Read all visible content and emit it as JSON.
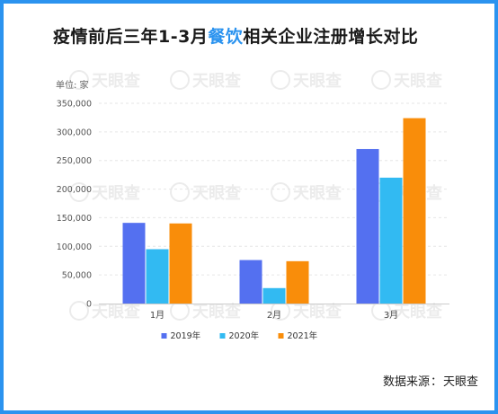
{
  "title": {
    "prefix": "疫情前后三年1-3月",
    "highlight": "餐饮",
    "suffix": "相关企业注册增长对比"
  },
  "unit_label": "单位: 家",
  "source": {
    "label": "数据来源",
    "separator": "：",
    "name": "天眼查"
  },
  "watermark": "天眼查",
  "colors": {
    "frame": "#2b93ef",
    "highlight": "#2b93ef"
  },
  "chart_data": {
    "type": "bar",
    "categories": [
      "1月",
      "2月",
      "3月"
    ],
    "series": [
      {
        "name": "2019年",
        "color": "#5470f0",
        "values": [
          141000,
          76000,
          270000
        ]
      },
      {
        "name": "2020年",
        "color": "#32baf2",
        "values": [
          95000,
          27000,
          220000
        ]
      },
      {
        "name": "2021年",
        "color": "#f98d0a",
        "values": [
          140000,
          74000,
          324000
        ]
      }
    ],
    "ylim": [
      0,
      350000
    ],
    "yticks": [
      0,
      50000,
      100000,
      150000,
      200000,
      250000,
      300000,
      350000
    ],
    "ytick_labels": [
      "0",
      "50,000",
      "100,000",
      "150,000",
      "200,000",
      "250,000",
      "300,000",
      "350,000"
    ],
    "grid": true,
    "legend_position": "bottom"
  }
}
